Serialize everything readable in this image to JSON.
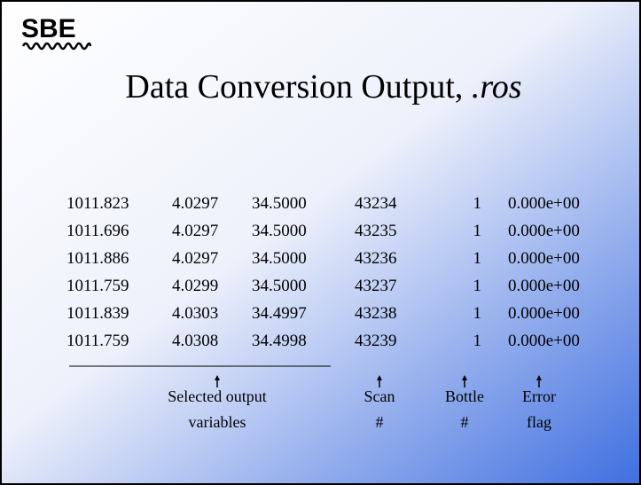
{
  "logo": "SBE",
  "title": {
    "text": "Data Conversion Output,",
    "emphasis": ".ros"
  },
  "table": {
    "rows": [
      [
        "1011.823",
        "4.0297",
        "34.5000",
        "43234",
        "1",
        "0.000e+00"
      ],
      [
        "1011.696",
        "4.0297",
        "34.5000",
        "43235",
        "1",
        "0.000e+00"
      ],
      [
        "1011.886",
        "4.0297",
        "34.5000",
        "43236",
        "1",
        "0.000e+00"
      ],
      [
        "1011.759",
        "4.0299",
        "34.5000",
        "43237",
        "1",
        "0.000e+00"
      ],
      [
        "1011.839",
        "4.0303",
        "34.4997",
        "43238",
        "1",
        "0.000e+00"
      ],
      [
        "1011.759",
        "4.0308",
        "34.4998",
        "43239",
        "1",
        "0.000e+00"
      ]
    ]
  },
  "labels": [
    [
      "Selected output",
      "variables"
    ],
    [
      "Scan",
      "#"
    ],
    [
      "Bottle",
      "#"
    ],
    [
      "Error",
      "flag"
    ]
  ]
}
